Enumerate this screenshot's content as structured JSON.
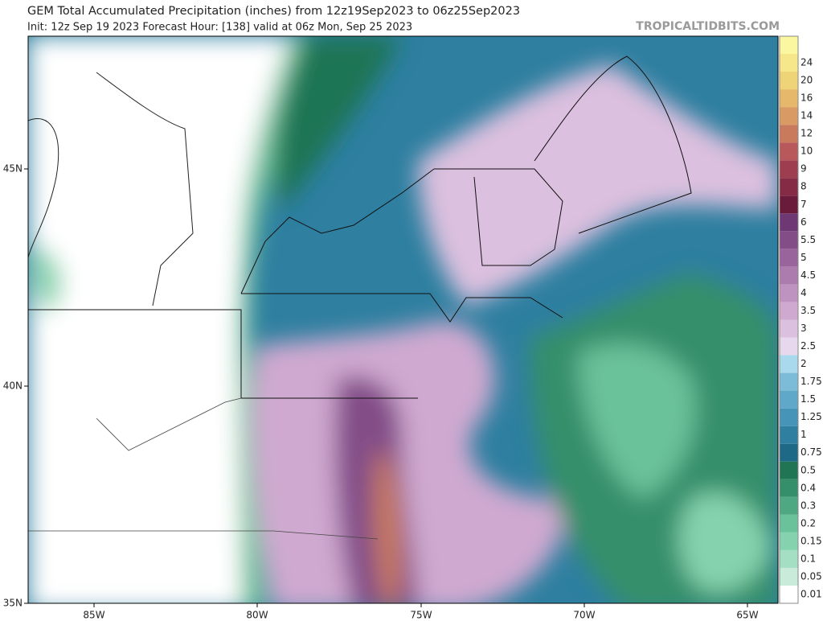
{
  "header": {
    "title": "GEM Total Accumulated Precipitation (inches) from 12z19Sep2023 to 06z25Sep2023",
    "subtitle": "Init: 12z Sep 19 2023   Forecast Hour: [138]   valid at 06z Mon, Sep 25 2023",
    "watermark": "TROPICALTIDBITS.COM"
  },
  "latitude_labels": [
    "45N",
    "40N",
    "35N"
  ],
  "longitude_labels": [
    "85W",
    "80W",
    "75W",
    "70W",
    "65W"
  ],
  "colorbar": [
    {
      "label": "0.01",
      "color": "#ffffff"
    },
    {
      "label": "0.05",
      "color": "#c8ecd9"
    },
    {
      "label": "0.1",
      "color": "#a5dfc3"
    },
    {
      "label": "0.15",
      "color": "#85d3ae"
    },
    {
      "label": "0.2",
      "color": "#6ac29a"
    },
    {
      "label": "0.3",
      "color": "#4ea982"
    },
    {
      "label": "0.4",
      "color": "#368f6b"
    },
    {
      "label": "0.5",
      "color": "#1f7554"
    },
    {
      "label": "0.75",
      "color": "#1e6a86"
    },
    {
      "label": "1",
      "color": "#2e7fa0"
    },
    {
      "label": "1.25",
      "color": "#4694b7"
    },
    {
      "label": "1.5",
      "color": "#5fa8c9"
    },
    {
      "label": "1.75",
      "color": "#7cbcd8"
    },
    {
      "label": "2",
      "color": "#a8d9ec"
    },
    {
      "label": "2.5",
      "color": "#e8d8ee"
    },
    {
      "label": "3",
      "color": "#dcc0df"
    },
    {
      "label": "3.5",
      "color": "#cfa9d0"
    },
    {
      "label": "4",
      "color": "#bf93c0"
    },
    {
      "label": "4.5",
      "color": "#ac7cae"
    },
    {
      "label": "5",
      "color": "#98649b"
    },
    {
      "label": "5.5",
      "color": "#834e88"
    },
    {
      "label": "6",
      "color": "#6e3874"
    },
    {
      "label": "7",
      "color": "#6a1a3a"
    },
    {
      "label": "8",
      "color": "#852b45"
    },
    {
      "label": "9",
      "color": "#9e3d50"
    },
    {
      "label": "10",
      "color": "#b8585a"
    },
    {
      "label": "12",
      "color": "#c97a5d"
    },
    {
      "label": "14",
      "color": "#d99a63"
    },
    {
      "label": "16",
      "color": "#e6b86c"
    },
    {
      "label": "20",
      "color": "#efd377"
    },
    {
      "label": "24",
      "color": "#f6e88a"
    }
  ]
}
